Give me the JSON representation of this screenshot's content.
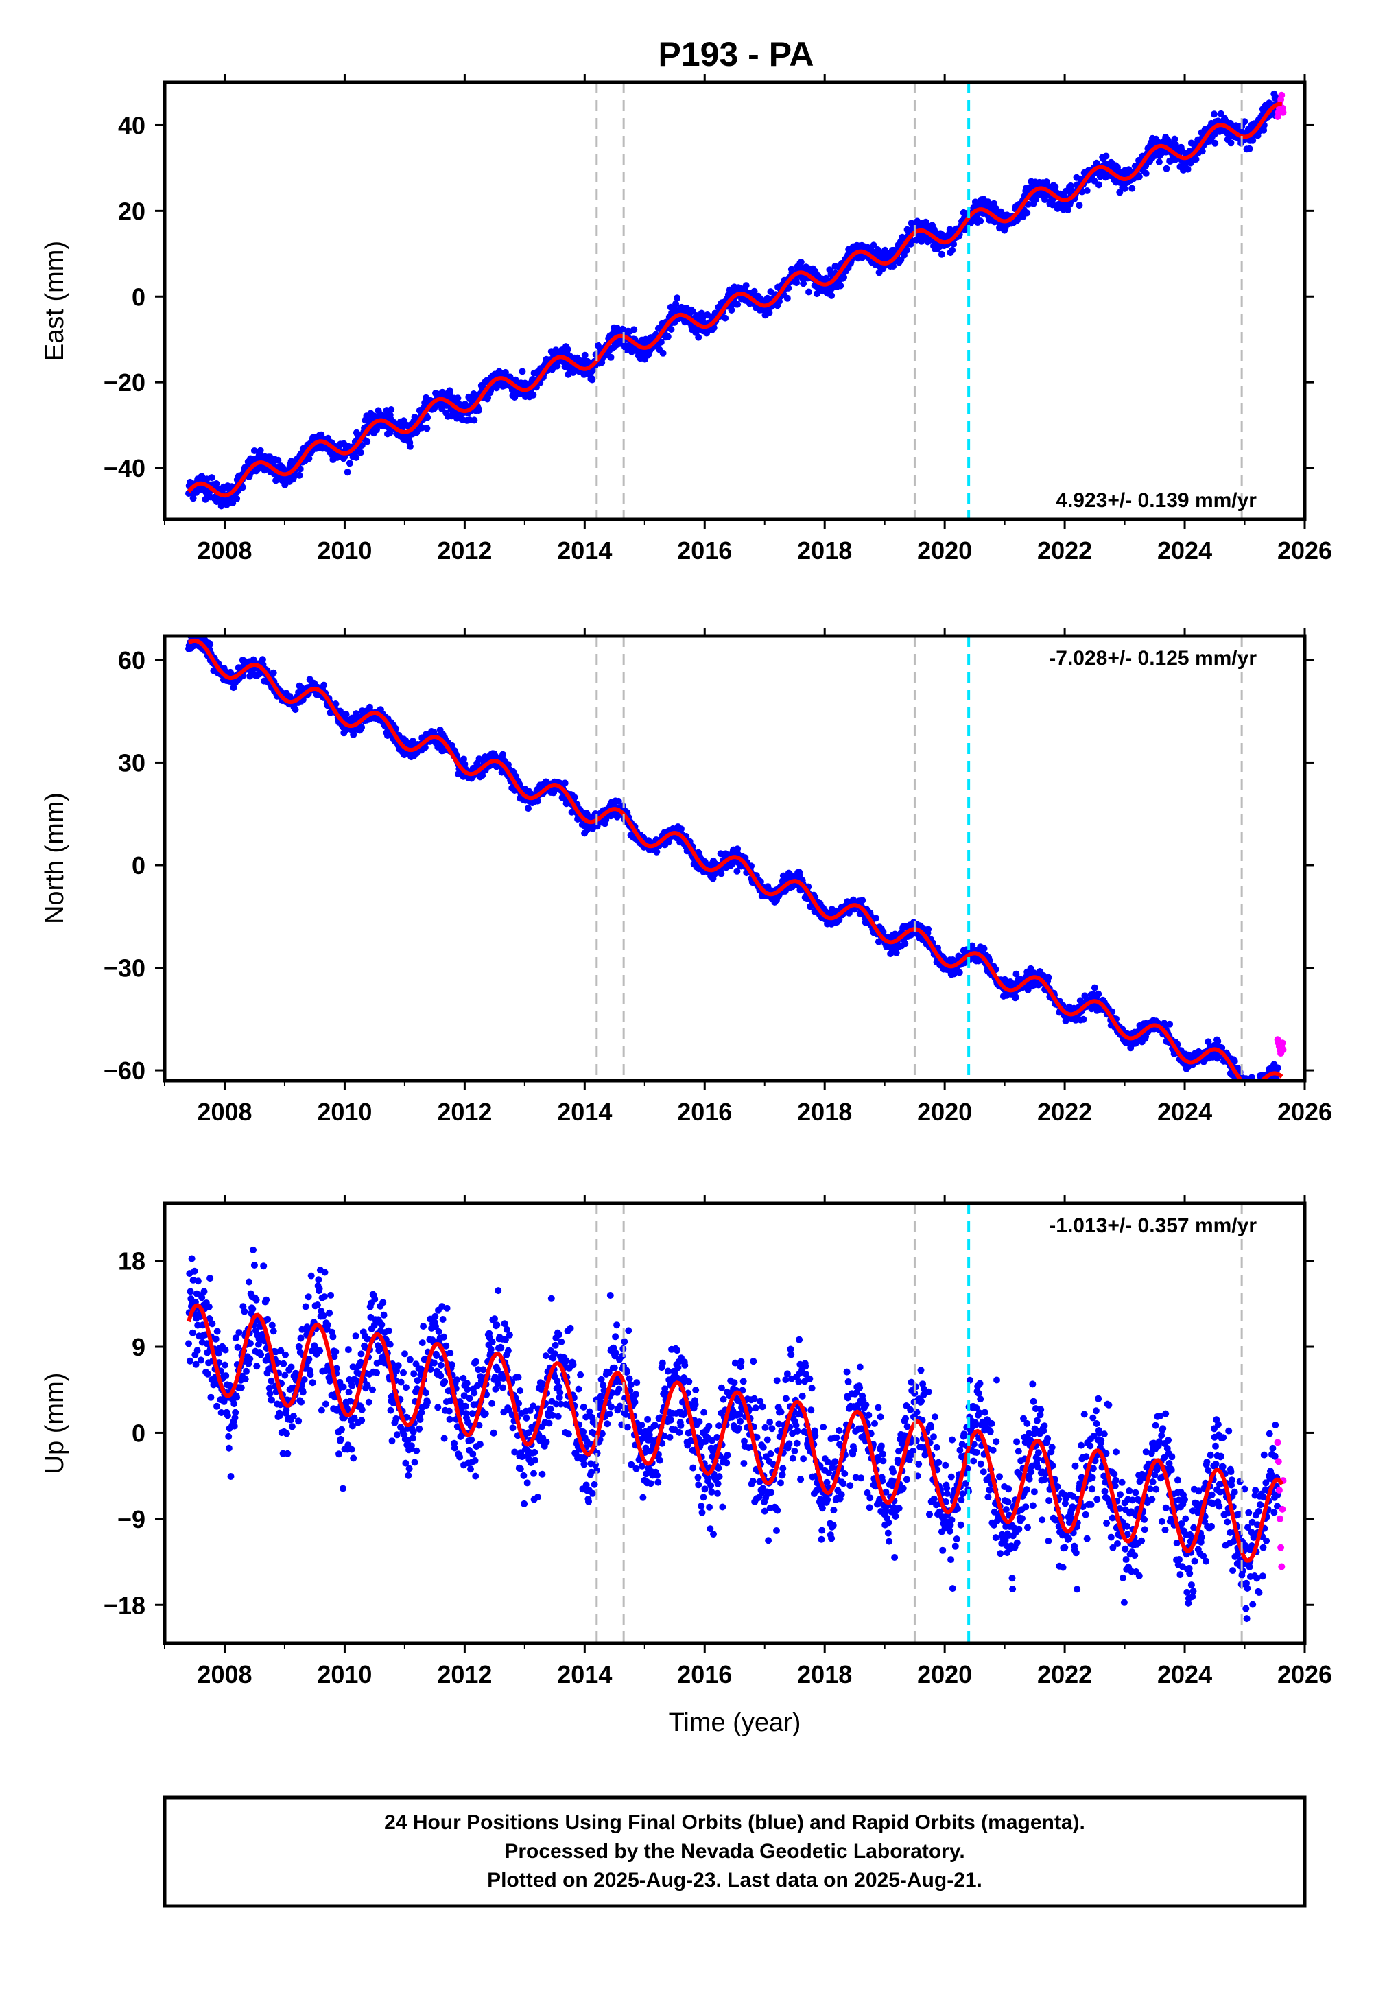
{
  "title": "P193 - PA",
  "footer": {
    "line1": "24 Hour Positions Using Final Orbits (blue) and Rapid Orbits (magenta).",
    "line2": "Processed by the Nevada Geodetic Laboratory.",
    "line3": "Plotted on 2025-Aug-23. Last data on 2025-Aug-21."
  },
  "colors": {
    "final_orbits": "#0000ff",
    "rapid_orbits": "#ff00ff",
    "model_fit": "#ff0000",
    "event_line": "#bbbbbb",
    "highlight_event_line": "#00e5ff"
  },
  "chart_data": [
    {
      "type": "scatter",
      "xlim": [
        2007.0,
        2026.0
      ],
      "ylim": [
        -52,
        50
      ],
      "ylabel": "East (mm)",
      "xlabel": "",
      "xticks": [
        2008,
        2010,
        2012,
        2014,
        2016,
        2018,
        2020,
        2022,
        2024,
        2026
      ],
      "yticks": [
        -40,
        -20,
        0,
        20,
        40
      ],
      "yticklabels": [
        "−40",
        "−20",
        "0",
        "20",
        "40"
      ],
      "rate_label": "4.923+/- 0.139 mm/yr",
      "rate_pos": "bottom-right",
      "event_lines": [
        2014.2,
        2014.65,
        2019.5,
        2024.95
      ],
      "highlight_lines": [
        2020.4
      ],
      "series": [
        {
          "role": "final_orbits",
          "x_range": [
            2007.4,
            2025.55
          ],
          "y_start": -47,
          "rate": 4.923,
          "annual_amp": 2.5,
          "noise": 1.3
        },
        {
          "role": "model_fit",
          "x_range": [
            2007.4,
            2025.62
          ]
        },
        {
          "role": "rapid_orbits",
          "x_range": [
            2025.55,
            2025.64
          ],
          "y_values": [
            42,
            43,
            44,
            45,
            46,
            47,
            44,
            43
          ]
        }
      ]
    },
    {
      "type": "scatter",
      "xlim": [
        2007.0,
        2026.0
      ],
      "ylim": [
        -63,
        67
      ],
      "ylabel": "North (mm)",
      "xlabel": "",
      "xticks": [
        2008,
        2010,
        2012,
        2014,
        2016,
        2018,
        2020,
        2022,
        2024,
        2026
      ],
      "yticks": [
        -60,
        -30,
        0,
        30,
        60
      ],
      "yticklabels": [
        "−60",
        "−30",
        "0",
        "30",
        "60"
      ],
      "rate_label": "-7.028+/- 0.125 mm/yr",
      "rate_pos": "top-right",
      "event_lines": [
        2014.2,
        2014.65,
        2019.5,
        2024.95
      ],
      "highlight_lines": [
        2020.4
      ],
      "series": [
        {
          "role": "final_orbits",
          "x_range": [
            2007.4,
            2025.55
          ],
          "y_start": 63,
          "rate": -7.028,
          "annual_amp": 3.5,
          "noise": 1.2
        },
        {
          "role": "model_fit",
          "x_range": [
            2007.4,
            2025.62
          ]
        },
        {
          "role": "rapid_orbits",
          "x_range": [
            2025.55,
            2025.64
          ],
          "y_values": [
            -51,
            -52,
            -53,
            -54,
            -55,
            -53,
            -52,
            -54
          ]
        }
      ]
    },
    {
      "type": "scatter",
      "xlim": [
        2007.0,
        2026.0
      ],
      "ylim": [
        -22,
        24
      ],
      "ylabel": "Up (mm)",
      "xlabel": "Time (year)",
      "xticks": [
        2008,
        2010,
        2012,
        2014,
        2016,
        2018,
        2020,
        2022,
        2024,
        2026
      ],
      "yticks": [
        -18,
        -9,
        0,
        9,
        18
      ],
      "yticklabels": [
        "−18",
        "−9",
        "0",
        "9",
        "18"
      ],
      "rate_label": "-1.013+/- 0.357 mm/yr",
      "rate_pos": "top-right",
      "event_lines": [
        2014.2,
        2014.65,
        2019.5,
        2024.95
      ],
      "highlight_lines": [
        2020.4
      ],
      "series": [
        {
          "role": "final_orbits",
          "x_range": [
            2007.4,
            2025.55
          ],
          "y_start": 9,
          "rate": -1.013,
          "annual_amp": 4.5,
          "noise": 2.8
        },
        {
          "role": "model_fit",
          "x_range": [
            2007.4,
            2025.62
          ]
        },
        {
          "role": "rapid_orbits",
          "x_range": [
            2025.55,
            2025.64
          ],
          "y_values": [
            -1,
            -3,
            -6,
            -9,
            -12,
            -14,
            -8,
            -5
          ]
        }
      ]
    }
  ]
}
